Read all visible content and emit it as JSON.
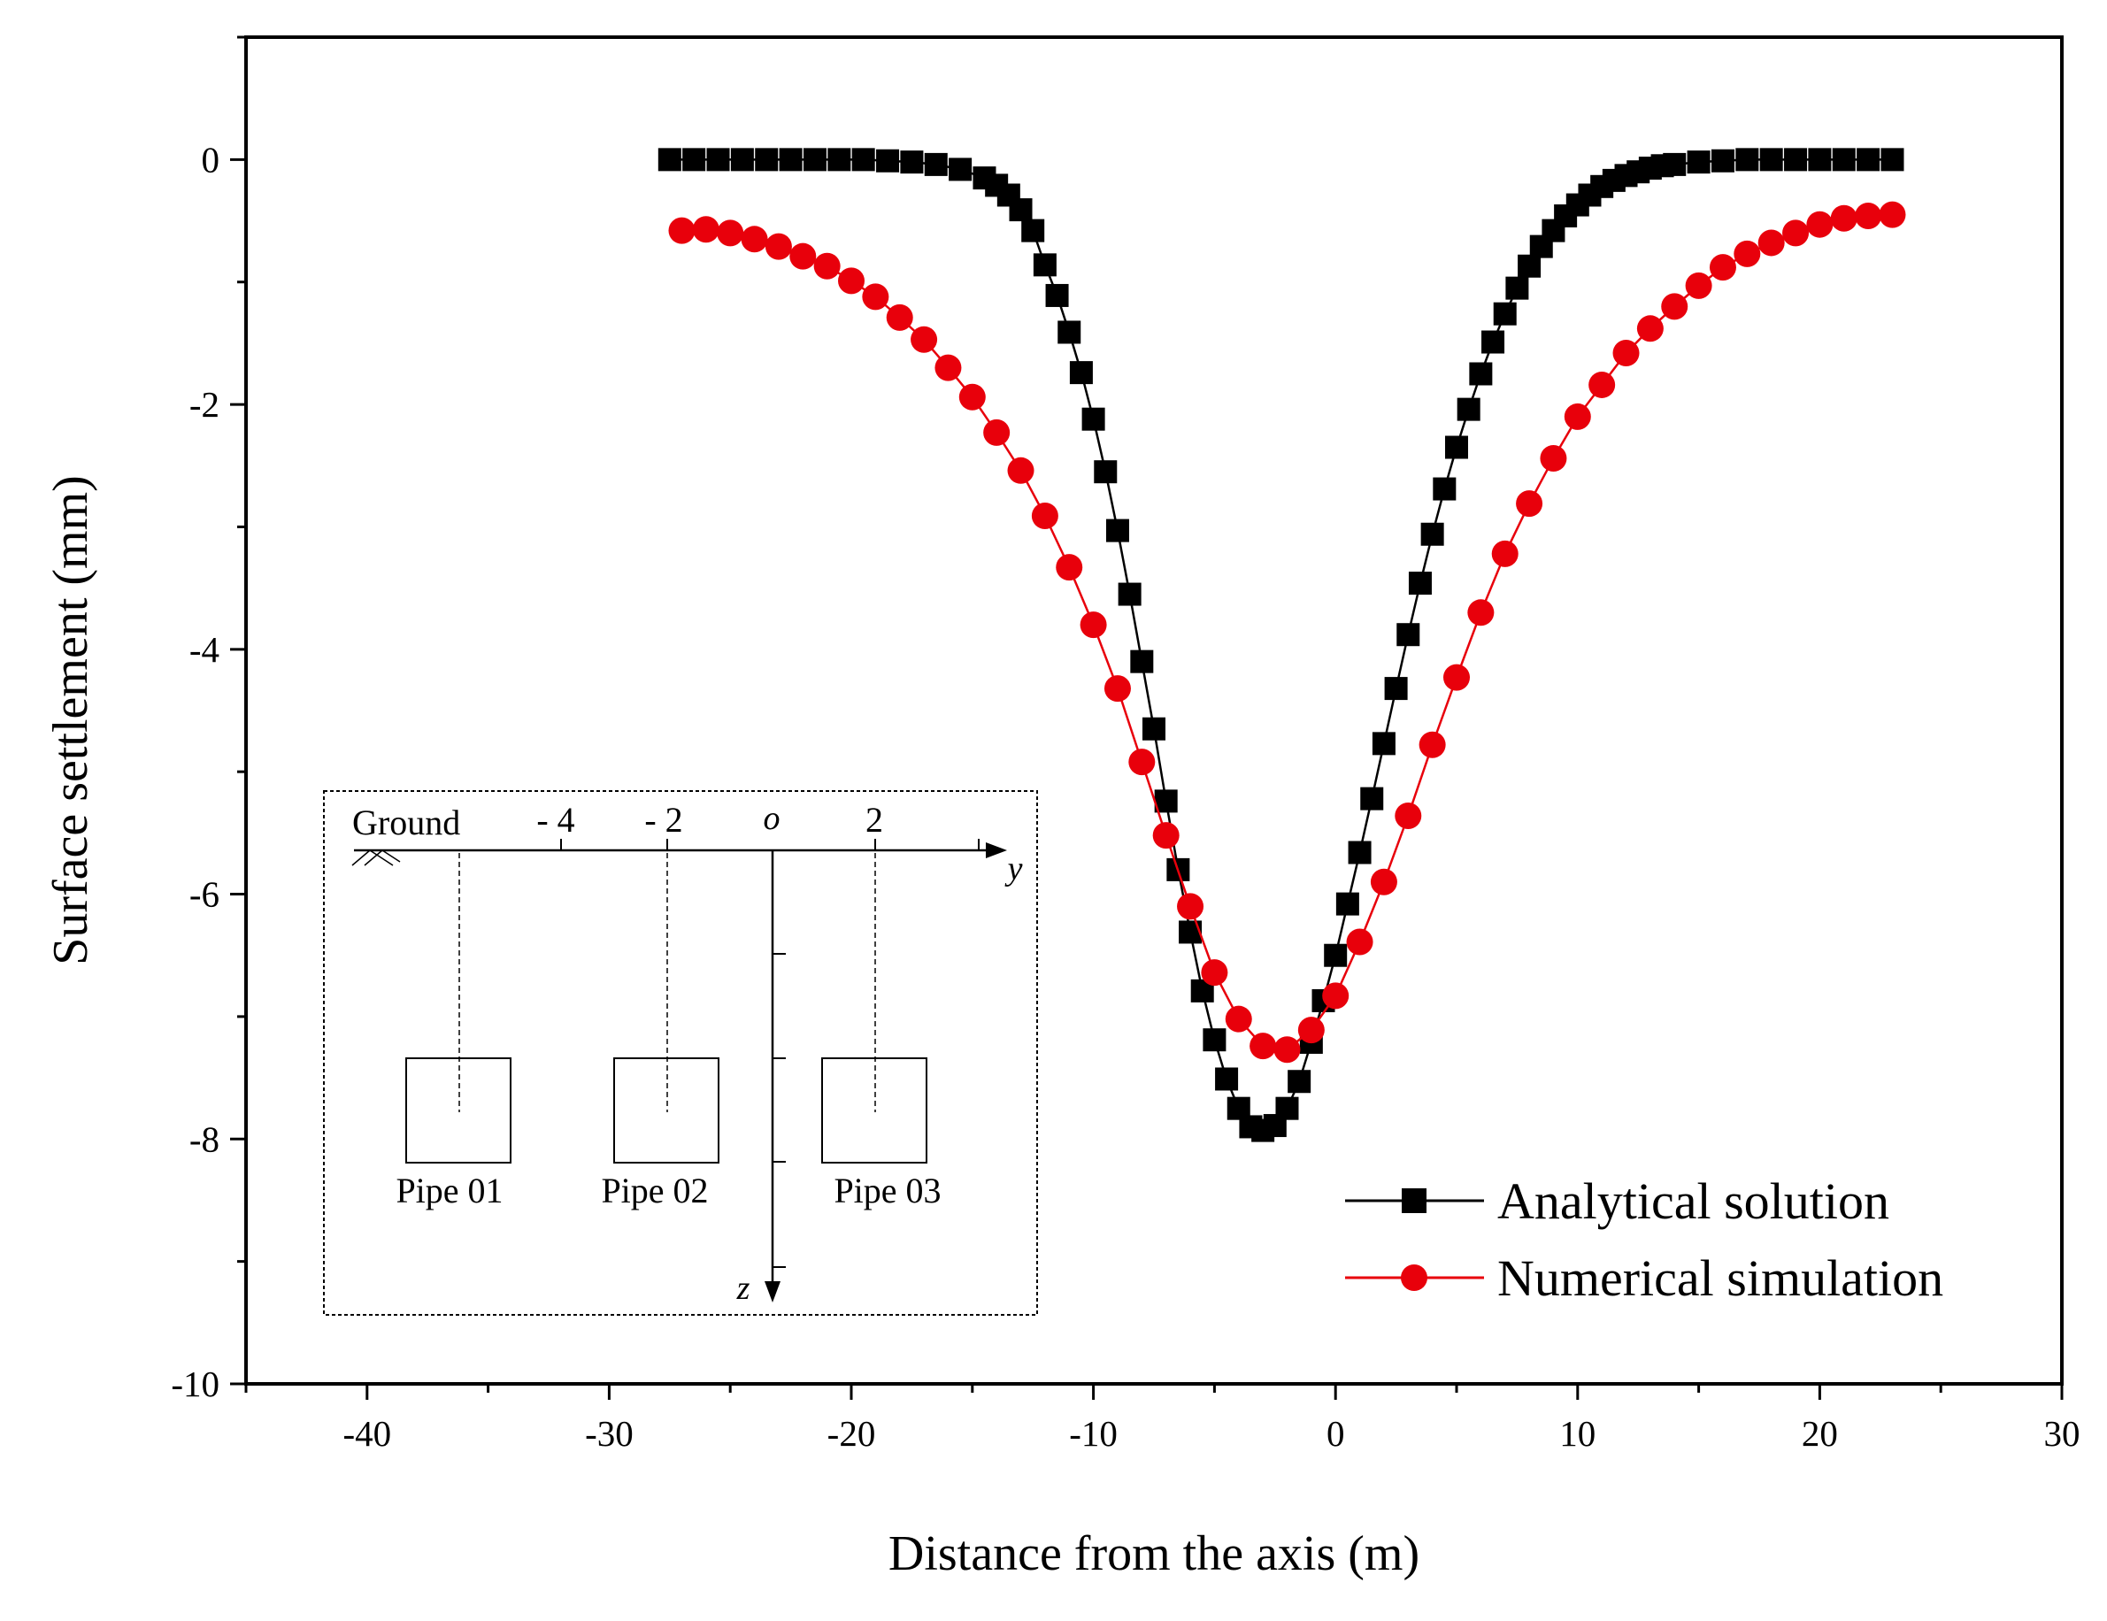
{
  "chart_data": {
    "type": "line",
    "title": "",
    "xlabel": "Distance from the axis (m)",
    "ylabel": "Surface settlement (mm)",
    "xlim": [
      -45,
      30
    ],
    "ylim": [
      -10,
      1
    ],
    "xticks": [
      -40,
      -30,
      -20,
      -10,
      0,
      10,
      20,
      30
    ],
    "yticks": [
      0,
      -2,
      -4,
      -6,
      -8,
      -10
    ],
    "grid": false,
    "legend_position": "bottom-right",
    "series": [
      {
        "name": "Analytical solution",
        "color": "#000000",
        "marker": "square",
        "x": [
          -27.5,
          -26.5,
          -25.5,
          -24.5,
          -23.5,
          -22.5,
          -21.5,
          -20.5,
          -19.5,
          -18.5,
          -17.5,
          -16.5,
          -15.5,
          -14.5,
          -14,
          -13.5,
          -13,
          -12.5,
          -12,
          -11.5,
          -11,
          -10.5,
          -10,
          -9.5,
          -9,
          -8.5,
          -8,
          -7.5,
          -7,
          -6.5,
          -6,
          -5.5,
          -5,
          -4.5,
          -4,
          -3.5,
          -3,
          -2.5,
          -2,
          -1.5,
          -1,
          -0.5,
          0,
          0.5,
          1,
          1.5,
          2,
          2.5,
          3,
          3.5,
          4,
          4.5,
          5,
          5.5,
          6,
          6.5,
          7,
          7.5,
          8,
          8.5,
          9,
          9.5,
          10,
          10.5,
          11,
          11.5,
          12,
          12.5,
          13,
          13.5,
          14,
          15,
          16,
          17,
          18,
          19,
          20,
          21,
          22,
          23
        ],
        "y": [
          0,
          0,
          0,
          0,
          0,
          0,
          0,
          0,
          0,
          -0.01,
          -0.02,
          -0.04,
          -0.08,
          -0.15,
          -0.21,
          -0.29,
          -0.41,
          -0.58,
          -0.86,
          -1.11,
          -1.41,
          -1.74,
          -2.12,
          -2.55,
          -3.03,
          -3.55,
          -4.1,
          -4.65,
          -5.24,
          -5.8,
          -6.31,
          -6.79,
          -7.19,
          -7.51,
          -7.75,
          -7.9,
          -7.93,
          -7.89,
          -7.75,
          -7.53,
          -7.21,
          -6.87,
          -6.5,
          -6.08,
          -5.66,
          -5.22,
          -4.77,
          -4.32,
          -3.88,
          -3.46,
          -3.06,
          -2.69,
          -2.35,
          -2.04,
          -1.75,
          -1.49,
          -1.26,
          -1.05,
          -0.87,
          -0.71,
          -0.58,
          -0.46,
          -0.37,
          -0.29,
          -0.22,
          -0.17,
          -0.13,
          -0.1,
          -0.07,
          -0.05,
          -0.04,
          -0.02,
          -0.01,
          0,
          0,
          0,
          0,
          0,
          0,
          0
        ]
      },
      {
        "name": "Numerical simulation",
        "color": "#e8000b",
        "marker": "circle",
        "x": [
          -27,
          -26,
          -25,
          -24,
          -23,
          -22,
          -21,
          -20,
          -19,
          -18,
          -17,
          -16,
          -15,
          -14,
          -13,
          -12,
          -11,
          -10,
          -9,
          -8,
          -7,
          -6,
          -5,
          -4,
          -3,
          -2,
          -1,
          0,
          1,
          2,
          3,
          4,
          5,
          6,
          7,
          8,
          9,
          10,
          11,
          12,
          13,
          14,
          15,
          16,
          17,
          18,
          19,
          20,
          21,
          22,
          23
        ],
        "y": [
          -0.58,
          -0.57,
          -0.6,
          -0.65,
          -0.71,
          -0.79,
          -0.87,
          -0.99,
          -1.12,
          -1.29,
          -1.47,
          -1.7,
          -1.94,
          -2.23,
          -2.54,
          -2.91,
          -3.33,
          -3.8,
          -4.32,
          -4.92,
          -5.52,
          -6.1,
          -6.64,
          -7.02,
          -7.24,
          -7.27,
          -7.11,
          -6.83,
          -6.39,
          -5.9,
          -5.36,
          -4.78,
          -4.23,
          -3.7,
          -3.22,
          -2.81,
          -2.44,
          -2.1,
          -1.84,
          -1.58,
          -1.38,
          -1.2,
          -1.03,
          -0.88,
          -0.77,
          -0.68,
          -0.6,
          -0.53,
          -0.48,
          -0.46,
          -0.45
        ]
      }
    ]
  },
  "inset": {
    "ground_label": "Ground",
    "y_ticks": [
      "- 4",
      "- 2",
      "o",
      "2"
    ],
    "y_axis_label": "y",
    "z_axis_label": "z",
    "pipes": [
      "Pipe 01",
      "Pipe 02",
      "Pipe 03"
    ]
  }
}
